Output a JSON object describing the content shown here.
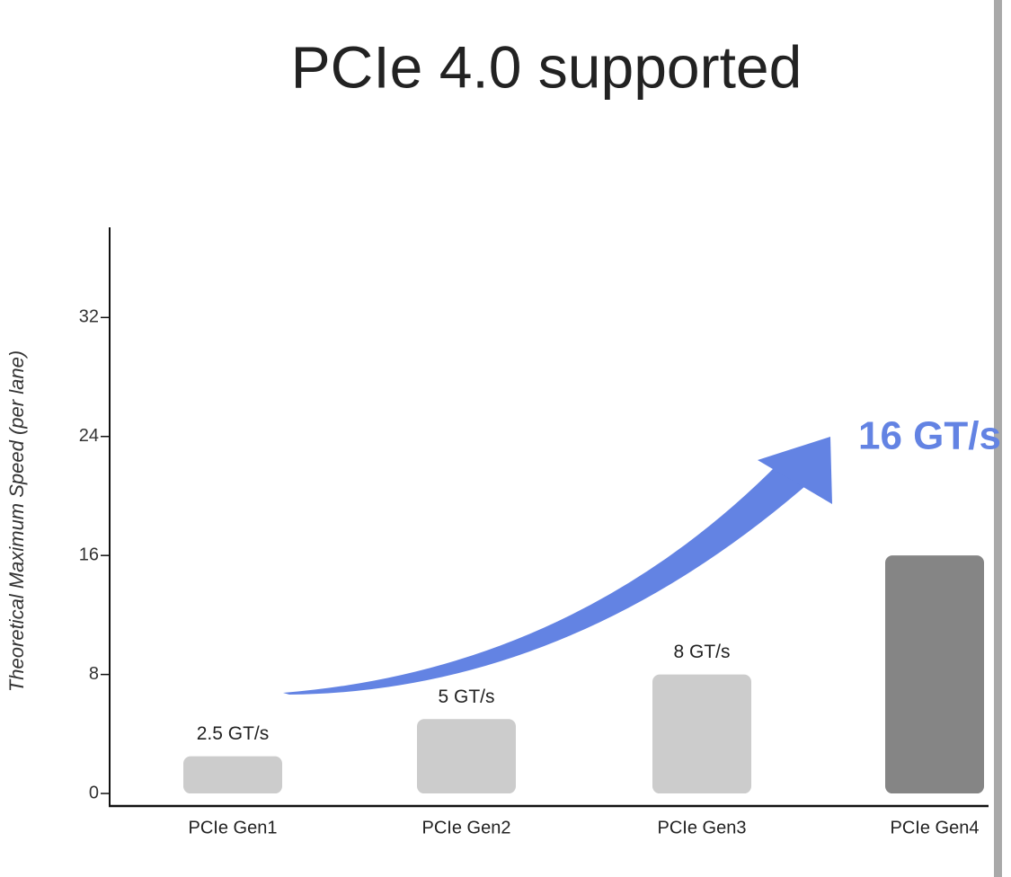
{
  "chart_data": {
    "type": "bar",
    "title": "PCIe 4.0  supported",
    "y_label": "Theoretical Maximum Speed (per lane)",
    "categories": [
      "PCIe Gen1",
      "PCIe Gen2",
      "PCIe Gen3",
      "PCIe Gen4"
    ],
    "values": [
      2.5,
      5,
      8,
      16
    ],
    "value_labels": [
      "2.5 GT/s",
      "5 GT/s",
      "8 GT/s",
      "16 GT/s"
    ],
    "colors": [
      "#cccccc",
      "#cccccc",
      "#cccccc",
      "#858585"
    ],
    "ylim": [
      -1,
      38
    ],
    "yticks": [
      0,
      8,
      16,
      24,
      32
    ],
    "grid": false
  }
}
